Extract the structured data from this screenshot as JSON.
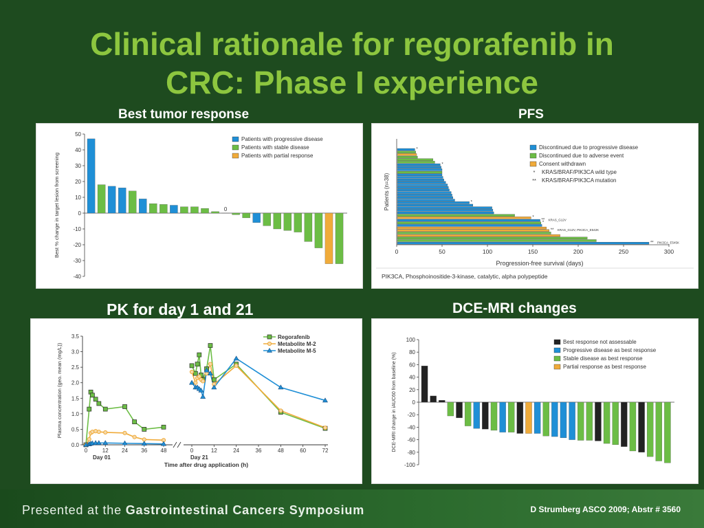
{
  "slide": {
    "title_line1": "Clinical rationale for regorafenib in",
    "title_line2": "CRC: Phase I experience",
    "footer_prefix": "Presented at the ",
    "footer_event": "Gastrointestinal Cancers Symposium",
    "citation": "D Strumberg ASCO 2009; Abstr # 3560"
  },
  "panels": {
    "tumor": {
      "heading": "Best tumor response"
    },
    "pfs": {
      "heading": "PFS"
    },
    "pk": {
      "heading": "PK for day 1 and 21"
    },
    "dce": {
      "heading": "DCE-MRI changes"
    }
  },
  "colors": {
    "blue": "#1f8fd6",
    "green": "#6cbd45",
    "orange": "#f0ab3a",
    "black": "#222222",
    "bg": "#1e4b1f",
    "title": "#8dc63f"
  },
  "chart_data": [
    {
      "id": "tumor",
      "type": "bar",
      "ylabel": "Best % change in target lesion from screening",
      "ylim": [
        -40,
        50
      ],
      "yticks": [
        50,
        40,
        30,
        20,
        10,
        0,
        -10,
        -20,
        -30,
        -40
      ],
      "series": [
        {
          "name": "Patients with progressive disease",
          "color": "blue"
        },
        {
          "name": "Patients with stable disease",
          "color": "green"
        },
        {
          "name": "Patients with partial response",
          "color": "orange"
        }
      ],
      "values": [
        47,
        18,
        17,
        16,
        14,
        9,
        6,
        5.5,
        5,
        4,
        4,
        3,
        1,
        0,
        -1,
        -3,
        -6,
        -8,
        -10,
        -11,
        -12,
        -18,
        -22,
        -32,
        -32
      ],
      "groups": [
        0,
        1,
        0,
        0,
        1,
        0,
        1,
        1,
        0,
        1,
        1,
        1,
        1,
        1,
        1,
        1,
        0,
        1,
        1,
        1,
        1,
        1,
        1,
        2,
        1
      ],
      "annotations": [
        {
          "text": "0",
          "index": 13
        }
      ]
    },
    {
      "id": "pfs",
      "type": "bar",
      "orientation": "horizontal",
      "xlabel": "Progression-free survival (days)",
      "ylabel": "Patients (n=38)",
      "xlim": [
        0,
        300
      ],
      "xticks": [
        0,
        50,
        100,
        150,
        200,
        250,
        300
      ],
      "series": [
        {
          "name": "Discontinued due to progressive disease",
          "color": "blue"
        },
        {
          "name": "Discontinued due to adverse event",
          "color": "green"
        },
        {
          "name": "Consent withdrawn",
          "color": "orange"
        }
      ],
      "marker_legend": [
        {
          "symbol": "*",
          "label": "KRAS/BRAF/PIK3CA wild type"
        },
        {
          "symbol": "**",
          "label": "KRAS/BRAF/PIK3CA mutation"
        }
      ],
      "values": [
        20,
        21,
        22,
        23,
        40,
        42,
        48,
        49,
        50,
        50,
        50,
        51,
        52,
        54,
        56,
        57,
        58,
        60,
        61,
        62,
        64,
        80,
        84,
        105,
        106,
        107,
        130,
        148,
        158,
        159,
        160,
        165,
        168,
        170,
        180,
        210,
        220,
        278
      ],
      "groups": [
        0,
        1,
        2,
        1,
        1,
        1,
        0,
        0,
        0,
        1,
        0,
        0,
        0,
        0,
        0,
        0,
        0,
        0,
        0,
        0,
        0,
        0,
        0,
        0,
        0,
        0,
        1,
        2,
        0,
        1,
        0,
        2,
        2,
        1,
        2,
        1,
        1,
        0
      ],
      "marks": [
        {
          "index": 0,
          "text": "*"
        },
        {
          "index": 6,
          "text": "*"
        },
        {
          "index": 21,
          "text": "*"
        },
        {
          "index": 27,
          "text": "*"
        },
        {
          "index": 28,
          "text": "**",
          "label": "KRAS_G12V"
        },
        {
          "index": 29,
          "text": "*"
        },
        {
          "index": 32,
          "text": "**",
          "label": "KRAS_G12V, PIK3CA_E542K"
        },
        {
          "index": 37,
          "text": "**",
          "label": "PIK3CA_E545K"
        }
      ],
      "footnote": "PIK3CA, Phosphoinositide-3-kinase, catalytic, alpha polypeptide"
    },
    {
      "id": "pk",
      "type": "line",
      "ylabel": "Plasma concentration (geo. mean (mg/L))",
      "xlabel": "Time after drug application (h)",
      "ylim": [
        0,
        3.5
      ],
      "yticks": [
        0.0,
        0.5,
        1.0,
        1.5,
        2.0,
        2.5,
        3.0,
        3.5
      ],
      "ytick_labels": [
        "0.0",
        "0.5",
        "1.0",
        "1.5",
        "2.0",
        "2.5",
        "3.0",
        "3.5"
      ],
      "xticks_day1": [
        0,
        12,
        24,
        36,
        48
      ],
      "xticks_day21": [
        0,
        12,
        24,
        36,
        48,
        60,
        72
      ],
      "day_labels": [
        "Day 01",
        "Day 21"
      ],
      "series": [
        {
          "name": "Regorafenib",
          "color": "green",
          "marker": "square",
          "day1": [
            [
              0,
              0
            ],
            [
              2,
              1.15
            ],
            [
              3,
              1.7
            ],
            [
              4,
              1.6
            ],
            [
              6,
              1.47
            ],
            [
              8,
              1.33
            ],
            [
              12,
              1.15
            ],
            [
              24,
              1.23
            ],
            [
              30,
              0.74
            ],
            [
              36,
              0.5
            ],
            [
              48,
              0.57
            ]
          ],
          "day21": [
            [
              0,
              2.55
            ],
            [
              2,
              2.3
            ],
            [
              3,
              2.6
            ],
            [
              4,
              2.9
            ],
            [
              5,
              2.25
            ],
            [
              6,
              2.1
            ],
            [
              8,
              2.45
            ],
            [
              10,
              3.2
            ],
            [
              12,
              2.1
            ],
            [
              24,
              2.6
            ],
            [
              48,
              1.05
            ],
            [
              72,
              0.53
            ]
          ]
        },
        {
          "name": "Metabolite M-2",
          "color": "orange",
          "marker": "circle",
          "day1": [
            [
              0,
              0
            ],
            [
              2,
              0.18
            ],
            [
              3,
              0.38
            ],
            [
              4,
              0.42
            ],
            [
              6,
              0.44
            ],
            [
              8,
              0.42
            ],
            [
              12,
              0.4
            ],
            [
              24,
              0.38
            ],
            [
              30,
              0.25
            ],
            [
              36,
              0.17
            ],
            [
              48,
              0.15
            ]
          ],
          "day21": [
            [
              0,
              2.35
            ],
            [
              2,
              2.0
            ],
            [
              3,
              2.15
            ],
            [
              4,
              2.2
            ],
            [
              5,
              2.1
            ],
            [
              6,
              2.05
            ],
            [
              8,
              2.3
            ],
            [
              10,
              2.6
            ],
            [
              12,
              1.95
            ],
            [
              24,
              2.55
            ],
            [
              48,
              1.1
            ],
            [
              72,
              0.55
            ]
          ]
        },
        {
          "name": "Metabolite M-5",
          "color": "blue",
          "marker": "triangle",
          "day1": [
            [
              0,
              0
            ],
            [
              2,
              0.02
            ],
            [
              3,
              0.04
            ],
            [
              4,
              0.05
            ],
            [
              6,
              0.06
            ],
            [
              8,
              0.06
            ],
            [
              12,
              0.06
            ],
            [
              24,
              0.05
            ],
            [
              36,
              0.04
            ],
            [
              48,
              0.03
            ]
          ],
          "day21": [
            [
              0,
              2.0
            ],
            [
              2,
              1.85
            ],
            [
              3,
              1.85
            ],
            [
              4,
              1.8
            ],
            [
              5,
              1.75
            ],
            [
              6,
              1.55
            ],
            [
              8,
              2.4
            ],
            [
              10,
              2.3
            ],
            [
              12,
              1.85
            ],
            [
              24,
              2.78
            ],
            [
              48,
              1.85
            ],
            [
              72,
              1.43
            ]
          ]
        }
      ]
    },
    {
      "id": "dce",
      "type": "bar",
      "ylabel": "DCE-MRI change in iAUC60 from baseline (%)",
      "ylim": [
        -100,
        100
      ],
      "yticks": [
        100,
        80,
        60,
        40,
        20,
        0,
        -20,
        -40,
        -60,
        -80,
        -100
      ],
      "series": [
        {
          "name": "Best response not assessable",
          "color": "black"
        },
        {
          "name": "Progressive disease as best response",
          "color": "blue"
        },
        {
          "name": "Stable disease as best response",
          "color": "green"
        },
        {
          "name": "Partial response as best response",
          "color": "orange"
        }
      ],
      "values": [
        58,
        10,
        3,
        -22,
        -25,
        -38,
        -42,
        -43,
        -45,
        -48,
        -48,
        -50,
        -50,
        -50,
        -54,
        -55,
        -57,
        -60,
        -61,
        -61,
        -62,
        -66,
        -68,
        -71,
        -78,
        -80,
        -87,
        -94,
        -97
      ],
      "groups": [
        0,
        0,
        0,
        2,
        0,
        2,
        1,
        0,
        2,
        1,
        2,
        0,
        3,
        1,
        2,
        1,
        1,
        1,
        2,
        2,
        0,
        2,
        2,
        0,
        2,
        0,
        2,
        2,
        2
      ]
    }
  ]
}
